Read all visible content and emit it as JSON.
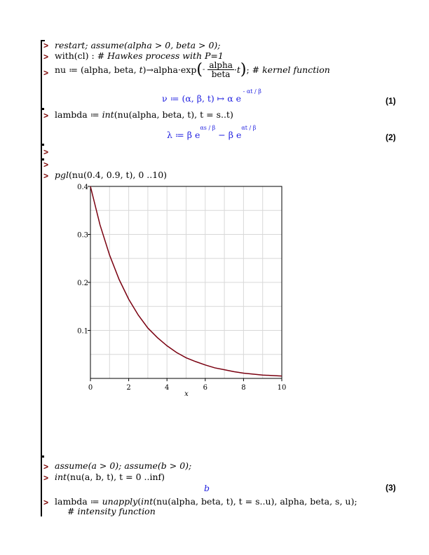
{
  "lines": {
    "l1": "restart; assume(alpha > 0, beta > 0);",
    "l2_a": "with(cl) : ",
    "l2_b": "# Hawkes process with P=1",
    "l3_a": "nu ≔ (alpha, beta, ",
    "l3_b": "t",
    "l3_c": ")→alpha·exp",
    "l3_num": "alpha",
    "l3_den": "beta",
    "l3_d": "·t",
    "l3_e": "; ",
    "l3_comment": "# kernel function",
    "l4_a": "lambda ≔ ",
    "l4_b": "int",
    "l4_c": "(nu(alpha, beta, t), t = s..t)",
    "l5_a": "pgl",
    "l5_b": "(nu(0.4, 0.9, t), 0 ..10)",
    "l6": "assume(a > 0); assume(b > 0);",
    "l7_a": "int",
    "l7_b": "(nu(a, b, t), t = 0 ..inf)",
    "l8_a": "lambda ≔ ",
    "l8_b": "unapply",
    "l8_c": "(",
    "l8_d": "int",
    "l8_e": "(nu(alpha, beta, t), t = s..u), alpha, beta, s, u);",
    "l9": "# intensity function"
  },
  "outputs": {
    "o1_a": "ν ≔ (α, β, t) ↦ α e",
    "o1_exp": "αt / β",
    "o2_a": "λ ≔ β e",
    "o2_exp1": "αs / β",
    "o2_b": "− β e",
    "o2_exp2": "αt / β",
    "o3": "b"
  },
  "equation_numbers": [
    "(1)",
    "(2)",
    "(3)"
  ],
  "prompt_symbol": ">",
  "colors": {
    "output": "#2020e0",
    "prompt": "#7a0000",
    "curve": "#7a0010"
  },
  "chart_data": {
    "type": "line",
    "title": "",
    "xlabel": "x",
    "ylabel": "",
    "xlim": [
      0,
      10
    ],
    "ylim": [
      0,
      0.4
    ],
    "xticks": [
      "0",
      "2",
      "4",
      "6",
      "8",
      "10"
    ],
    "yticks": [
      "0.1",
      "0.2",
      "0.3",
      "0.4"
    ],
    "grid": true,
    "series": [
      {
        "x": [
          0,
          0.5,
          1,
          1.5,
          2,
          2.5,
          3,
          3.5,
          4,
          4.5,
          5,
          5.5,
          6,
          6.5,
          7,
          7.5,
          8,
          8.5,
          9,
          9.5,
          10
        ],
        "y": [
          0.4,
          0.32,
          0.257,
          0.206,
          0.165,
          0.132,
          0.105,
          0.085,
          0.068,
          0.054,
          0.043,
          0.035,
          0.028,
          0.022,
          0.018,
          0.014,
          0.011,
          0.009,
          0.007,
          0.006,
          0.005
        ]
      }
    ]
  }
}
